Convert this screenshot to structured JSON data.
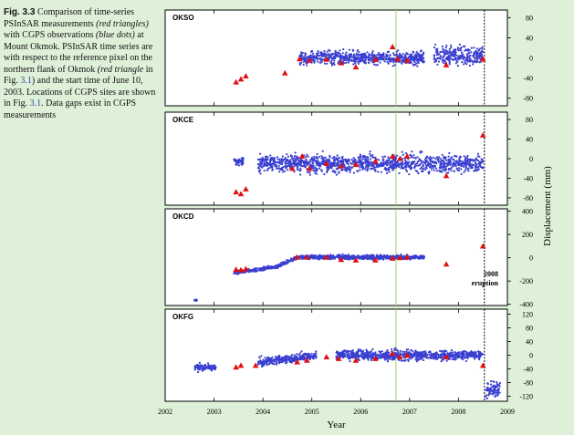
{
  "caption": {
    "label": "Fig. 3.3",
    "text_runs": [
      {
        "t": "Comparison of time-series PSInSAR measurements ",
        "s": ""
      },
      {
        "t": "(red triangles)",
        "s": "i"
      },
      {
        "t": " with CGPS observations ",
        "s": ""
      },
      {
        "t": "(blue dots)",
        "s": "i"
      },
      {
        "t": " at Mount Okmok. PSInSAR time series are with respect to the reference pixel on the northern flank of Okmok ",
        "s": ""
      },
      {
        "t": "(red triangle",
        "s": "i"
      },
      {
        "t": " in Fig. ",
        "s": ""
      },
      {
        "t": "3.1",
        "s": "r"
      },
      {
        "t": ") and the start time of June 10, 2003. Locations of CGPS sites are shown in Fig. ",
        "s": ""
      },
      {
        "t": "3.1",
        "s": "r"
      },
      {
        "t": ". Data gaps exist in CGPS measurements",
        "s": ""
      }
    ]
  },
  "colors": {
    "gps": "#3a3fd0",
    "insar": "#e01010",
    "green_line": "#9bd36a"
  },
  "chart_data": {
    "type": "scatter",
    "xlabel": "Year",
    "ylabel": "Displacement (mm)",
    "xlim": [
      2002,
      2009
    ],
    "xticks": [
      "2002",
      "2003",
      "2004",
      "2005",
      "2006",
      "2007",
      "2008",
      "2009"
    ],
    "markers": {
      "green_line_x": 2006.72,
      "eruption_x": 2008.53
    },
    "panels": [
      {
        "name": "OKSO",
        "ylim": [
          -95,
          95
        ],
        "yticks": [
          "80",
          "40",
          "0",
          "-40",
          "-80"
        ],
        "insar": [
          [
            2003.45,
            -48
          ],
          [
            2003.55,
            -42
          ],
          [
            2003.65,
            -36
          ],
          [
            2004.45,
            -30
          ],
          [
            2004.75,
            -2
          ],
          [
            2004.95,
            -5
          ],
          [
            2005.3,
            -3
          ],
          [
            2005.6,
            -10
          ],
          [
            2005.9,
            -18
          ],
          [
            2006.3,
            -3
          ],
          [
            2006.65,
            22
          ],
          [
            2006.75,
            -2
          ],
          [
            2006.95,
            -5
          ],
          [
            2007.75,
            -14
          ],
          [
            2008.5,
            -2
          ]
        ],
        "gps": [
          {
            "from": 2004.75,
            "to": 2007.3,
            "base": 0,
            "slope": 0,
            "noise": 22
          },
          {
            "from": 2007.5,
            "to": 2008.5,
            "base": 5,
            "slope": 0,
            "noise": 30
          }
        ]
      },
      {
        "name": "OKCE",
        "ylim": [
          -95,
          95
        ],
        "yticks": [
          "80",
          "40",
          "0",
          "-40",
          "-80"
        ],
        "insar": [
          [
            2003.45,
            -68
          ],
          [
            2003.55,
            -72
          ],
          [
            2003.65,
            -62
          ],
          [
            2004.6,
            -20
          ],
          [
            2004.8,
            5
          ],
          [
            2004.95,
            -20
          ],
          [
            2005.3,
            -10
          ],
          [
            2005.6,
            -15
          ],
          [
            2005.9,
            -12
          ],
          [
            2006.3,
            -5
          ],
          [
            2006.65,
            5
          ],
          [
            2006.8,
            0
          ],
          [
            2006.95,
            5
          ],
          [
            2007.75,
            -35
          ],
          [
            2008.5,
            48
          ]
        ],
        "gps": [
          {
            "from": 2003.4,
            "to": 2003.6,
            "base": -5,
            "slope": 0,
            "noise": 15
          },
          {
            "from": 2003.9,
            "to": 2008.5,
            "base": -10,
            "slope": 0,
            "noise": 30
          }
        ]
      },
      {
        "name": "OKCD",
        "ylim": [
          -410,
          420
        ],
        "yticks": [
          "400",
          "200",
          "0",
          "-200",
          "-400"
        ],
        "insar": [
          [
            2003.45,
            -100
          ],
          [
            2003.55,
            -105
          ],
          [
            2003.65,
            -95
          ],
          [
            2004.7,
            5
          ],
          [
            2004.9,
            5
          ],
          [
            2005.3,
            5
          ],
          [
            2005.6,
            -15
          ],
          [
            2005.9,
            -20
          ],
          [
            2006.3,
            -20
          ],
          [
            2006.65,
            -5
          ],
          [
            2006.8,
            0
          ],
          [
            2006.95,
            5
          ],
          [
            2007.75,
            -55
          ],
          [
            2008.5,
            100
          ]
        ],
        "gps": [
          {
            "from": 2002.6,
            "to": 2002.65,
            "base": -365,
            "slope": 0,
            "noise": 15
          },
          {
            "from": 2003.4,
            "to": 2004.3,
            "base": -130,
            "slope": 60,
            "noise": 25
          },
          {
            "from": 2004.3,
            "to": 2004.7,
            "base": -75,
            "slope": 200,
            "noise": 25
          },
          {
            "from": 2004.7,
            "to": 2007.3,
            "base": 5,
            "slope": 0,
            "noise": 30
          }
        ]
      },
      {
        "name": "OKFG",
        "ylim": [
          -135,
          135
        ],
        "yticks": [
          "120",
          "80",
          "40",
          "0",
          "-40",
          "-80",
          "-120"
        ],
        "insar": [
          [
            2003.45,
            -35
          ],
          [
            2003.55,
            -30
          ],
          [
            2003.85,
            -30
          ],
          [
            2004.7,
            -20
          ],
          [
            2004.9,
            -15
          ],
          [
            2005.3,
            -5
          ],
          [
            2005.55,
            -10
          ],
          [
            2005.9,
            -15
          ],
          [
            2006.3,
            -10
          ],
          [
            2006.65,
            5
          ],
          [
            2006.8,
            -5
          ],
          [
            2006.95,
            0
          ],
          [
            2007.75,
            -5
          ],
          [
            2008.5,
            -30
          ]
        ],
        "gps": [
          {
            "from": 2002.6,
            "to": 2003.05,
            "base": -35,
            "slope": 0,
            "noise": 18
          },
          {
            "from": 2003.9,
            "to": 2005.1,
            "base": -20,
            "slope": 15,
            "noise": 20
          },
          {
            "from": 2005.5,
            "to": 2008.5,
            "base": 0,
            "slope": 0,
            "noise": 25
          },
          {
            "from": 2008.55,
            "to": 2008.85,
            "base": -100,
            "slope": 0,
            "noise": 40
          }
        ]
      }
    ],
    "annotation": {
      "line1": "2008",
      "line2": "eruption"
    }
  }
}
